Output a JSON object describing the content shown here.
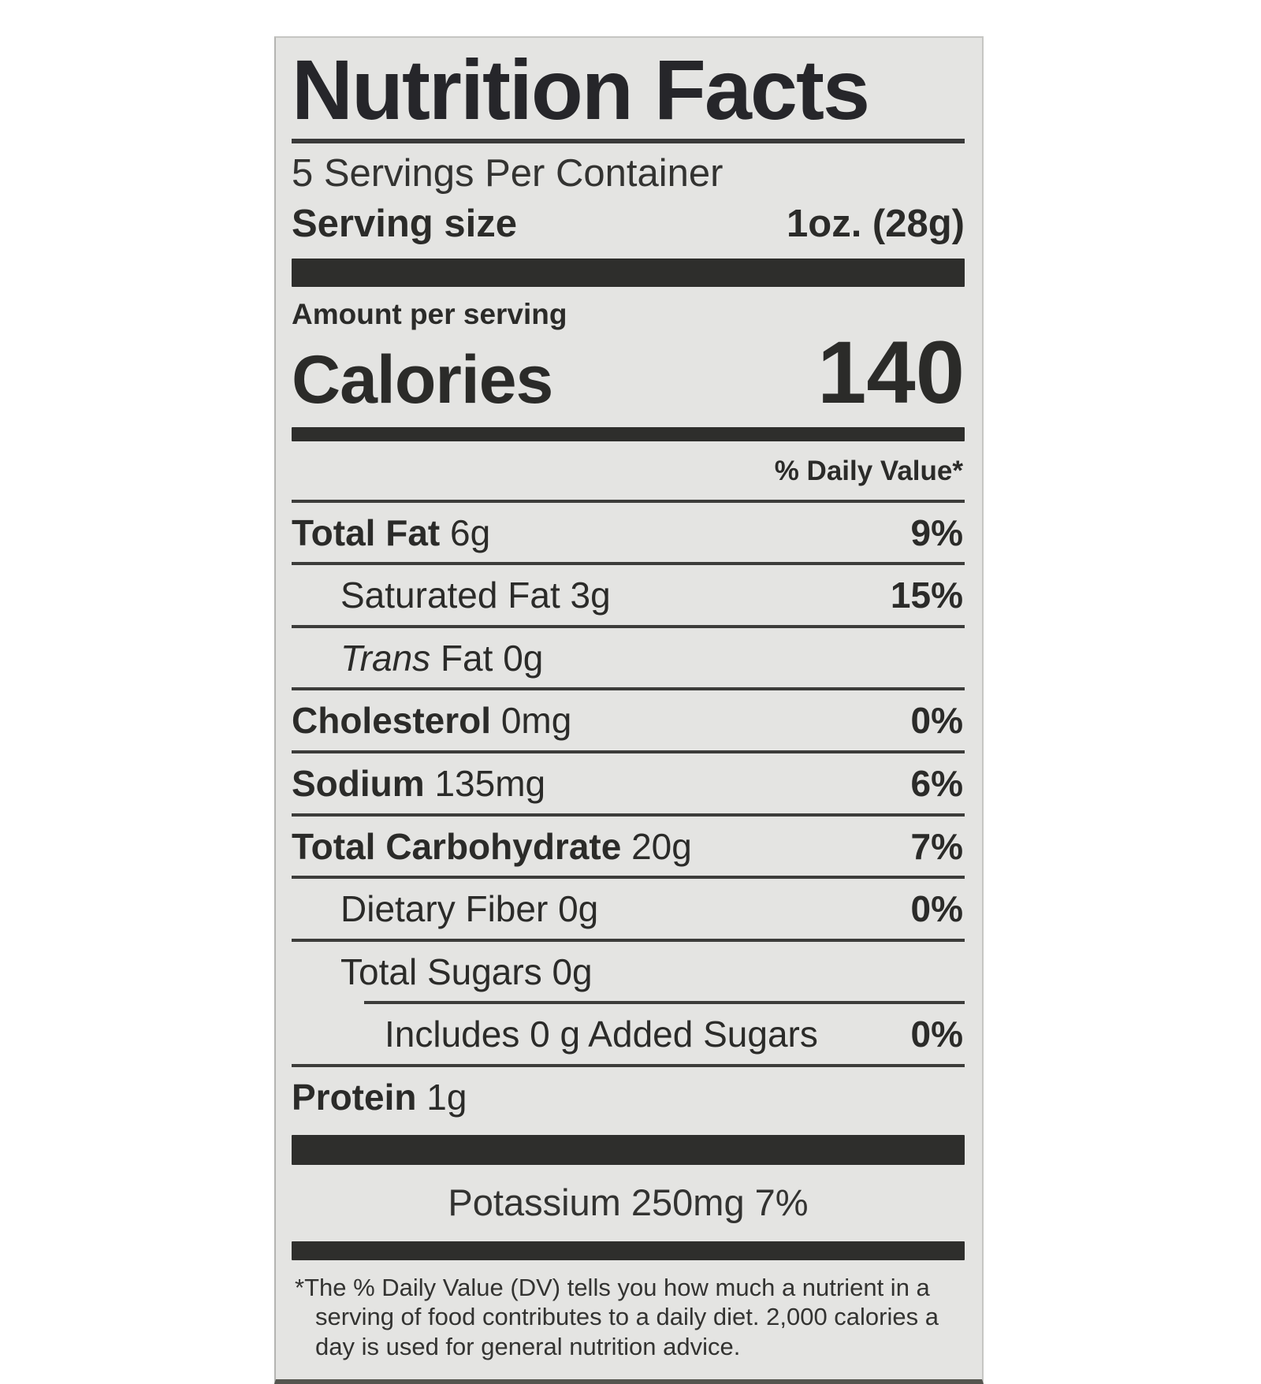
{
  "label": {
    "title": "Nutrition Facts",
    "servings_per_container": "5 Servings Per Container",
    "serving_size_label": "Serving size",
    "serving_size_value": "1oz. (28g)",
    "amount_per_serving": "Amount per serving",
    "calories_label": "Calories",
    "calories_value": "140",
    "daily_value_header": "% Daily Value*",
    "rows": [
      {
        "bold": "Total Fat",
        "italic": "",
        "text": " 6g",
        "dv": "9%"
      },
      {
        "bold": "",
        "italic": "",
        "text": "Saturated Fat 3g",
        "dv": "15%"
      },
      {
        "bold": "",
        "italic": "Trans",
        "text": " Fat 0g",
        "dv": ""
      },
      {
        "bold": "Cholesterol",
        "italic": "",
        "text": " 0mg",
        "dv": "0%"
      },
      {
        "bold": "Sodium",
        "italic": "",
        "text": " 135mg",
        "dv": "6%"
      },
      {
        "bold": "Total Carbohydrate",
        "italic": "",
        "text": " 20g",
        "dv": "7%"
      },
      {
        "bold": "",
        "italic": "",
        "text": "Dietary Fiber 0g",
        "dv": "0%"
      },
      {
        "bold": "",
        "italic": "",
        "text": "Total Sugars 0g",
        "dv": ""
      },
      {
        "bold": "",
        "italic": "",
        "text": "Includes 0 g Added Sugars",
        "dv": "0%"
      },
      {
        "bold": "Protein",
        "italic": "",
        "text": " 1g",
        "dv": ""
      }
    ],
    "potassium_line": "Potassium 250mg 7%",
    "footnote": "*The % Daily Value (DV) tells you how much a nutrient in a serving of food contributes to a daily diet. 2,000 calories a day is used for general nutrition advice."
  }
}
